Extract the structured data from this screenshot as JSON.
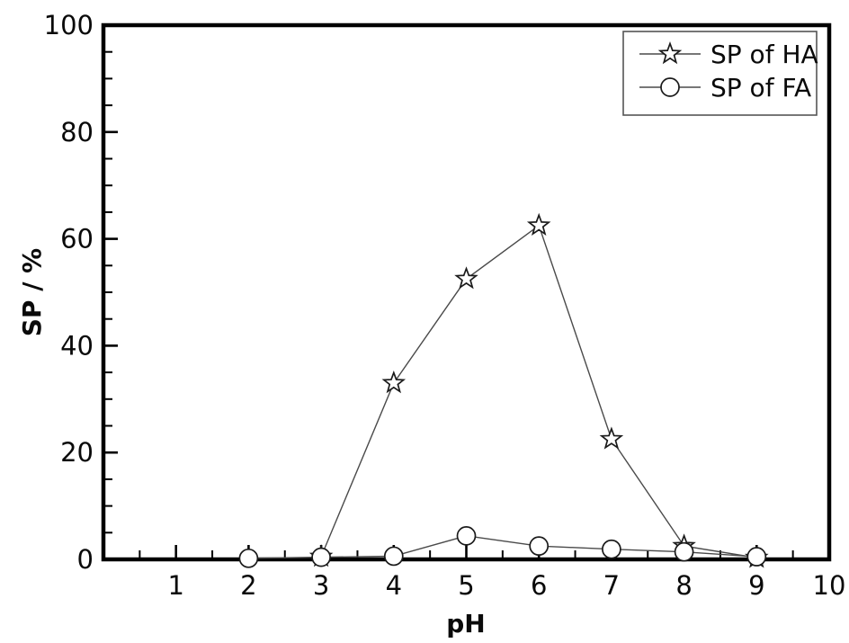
{
  "figure": {
    "background_color": "#ffffff",
    "frame_color": "#000000",
    "series_line_color": "#4a4a4a",
    "marker_stroke_color": "#1a1a1a",
    "marker_fill_color": "#ffffff",
    "legend_border_color": "#555555"
  },
  "chart_data": {
    "type": "line",
    "xlabel": "pH",
    "ylabel": "SP / %",
    "xlim": [
      0,
      10
    ],
    "ylim": [
      0,
      100
    ],
    "x_major_ticks": [
      1,
      2,
      3,
      4,
      5,
      6,
      7,
      8,
      9,
      10
    ],
    "x_minor_step": 0.5,
    "y_major_ticks": [
      0,
      20,
      40,
      60,
      80,
      100
    ],
    "y_minor_step": 5,
    "grid": false,
    "legend_position": "top-right",
    "series": [
      {
        "name": "SP of HA",
        "marker": "star",
        "x": [
          3,
          4,
          5,
          6,
          7,
          8,
          9
        ],
        "y": [
          0.5,
          33,
          52.5,
          62.5,
          22.5,
          2.5,
          0.3
        ]
      },
      {
        "name": "SP of FA",
        "marker": "circle",
        "x": [
          2,
          3,
          4,
          5,
          6,
          7,
          8,
          9
        ],
        "y": [
          0.2,
          0.4,
          0.6,
          4.4,
          2.5,
          1.9,
          1.4,
          0.5
        ]
      }
    ]
  }
}
